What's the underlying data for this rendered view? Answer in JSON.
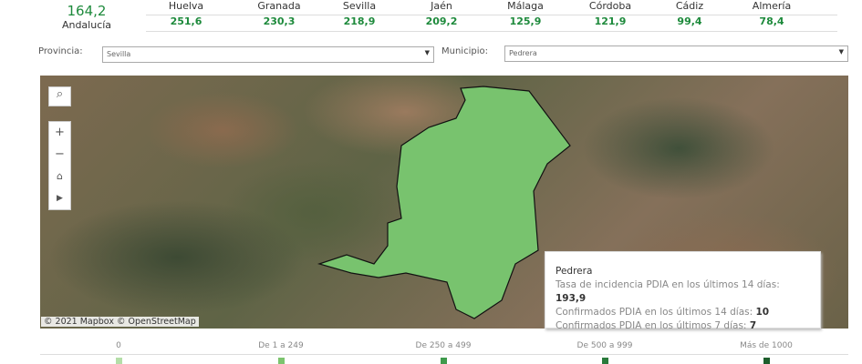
{
  "summary": {
    "total_value": "164,2",
    "total_label": "Andalucía",
    "provinces": [
      {
        "name": "Huelva",
        "value": "251,6"
      },
      {
        "name": "Granada",
        "value": "230,3"
      },
      {
        "name": "Sevilla",
        "value": "218,9"
      },
      {
        "name": "Jaén",
        "value": "209,2"
      },
      {
        "name": "Málaga",
        "value": "125,9"
      },
      {
        "name": "Córdoba",
        "value": "121,9"
      },
      {
        "name": "Cádiz",
        "value": "99,4"
      },
      {
        "name": "Almería",
        "value": "78,4"
      }
    ]
  },
  "filters": {
    "provincia_label": "Provincia:",
    "provincia_value": "Sevilla",
    "municipio_label": "Municipio:",
    "municipio_value": "Pedrera"
  },
  "map": {
    "attribution": "© 2021 Mapbox © OpenStreetMap",
    "highlight_color": "#78c36e",
    "controls": [
      "search-icon",
      "zoom-in-icon",
      "zoom-out-icon",
      "home-icon",
      "play-icon"
    ],
    "tooltip": {
      "title": "Pedrera",
      "line1_label": "Tasa de incidencia PDIA en los últimos 14 días:",
      "line1_value": "193,9",
      "line2_label": "Confirmados PDIA en los últimos 14 días:",
      "line2_value": "10",
      "line3_label": "Confirmados PDIA en los últimos 7 días:",
      "line3_value": "7"
    }
  },
  "legend": [
    {
      "label": "0",
      "color": "#b4dea8"
    },
    {
      "label": "De 1 a 249",
      "color": "#7cc46e"
    },
    {
      "label": "De 250 a 499",
      "color": "#3f9a4c"
    },
    {
      "label": "De 500 a 999",
      "color": "#2a7a3b"
    },
    {
      "label": "Más de 1000",
      "color": "#1d5e2c"
    }
  ]
}
